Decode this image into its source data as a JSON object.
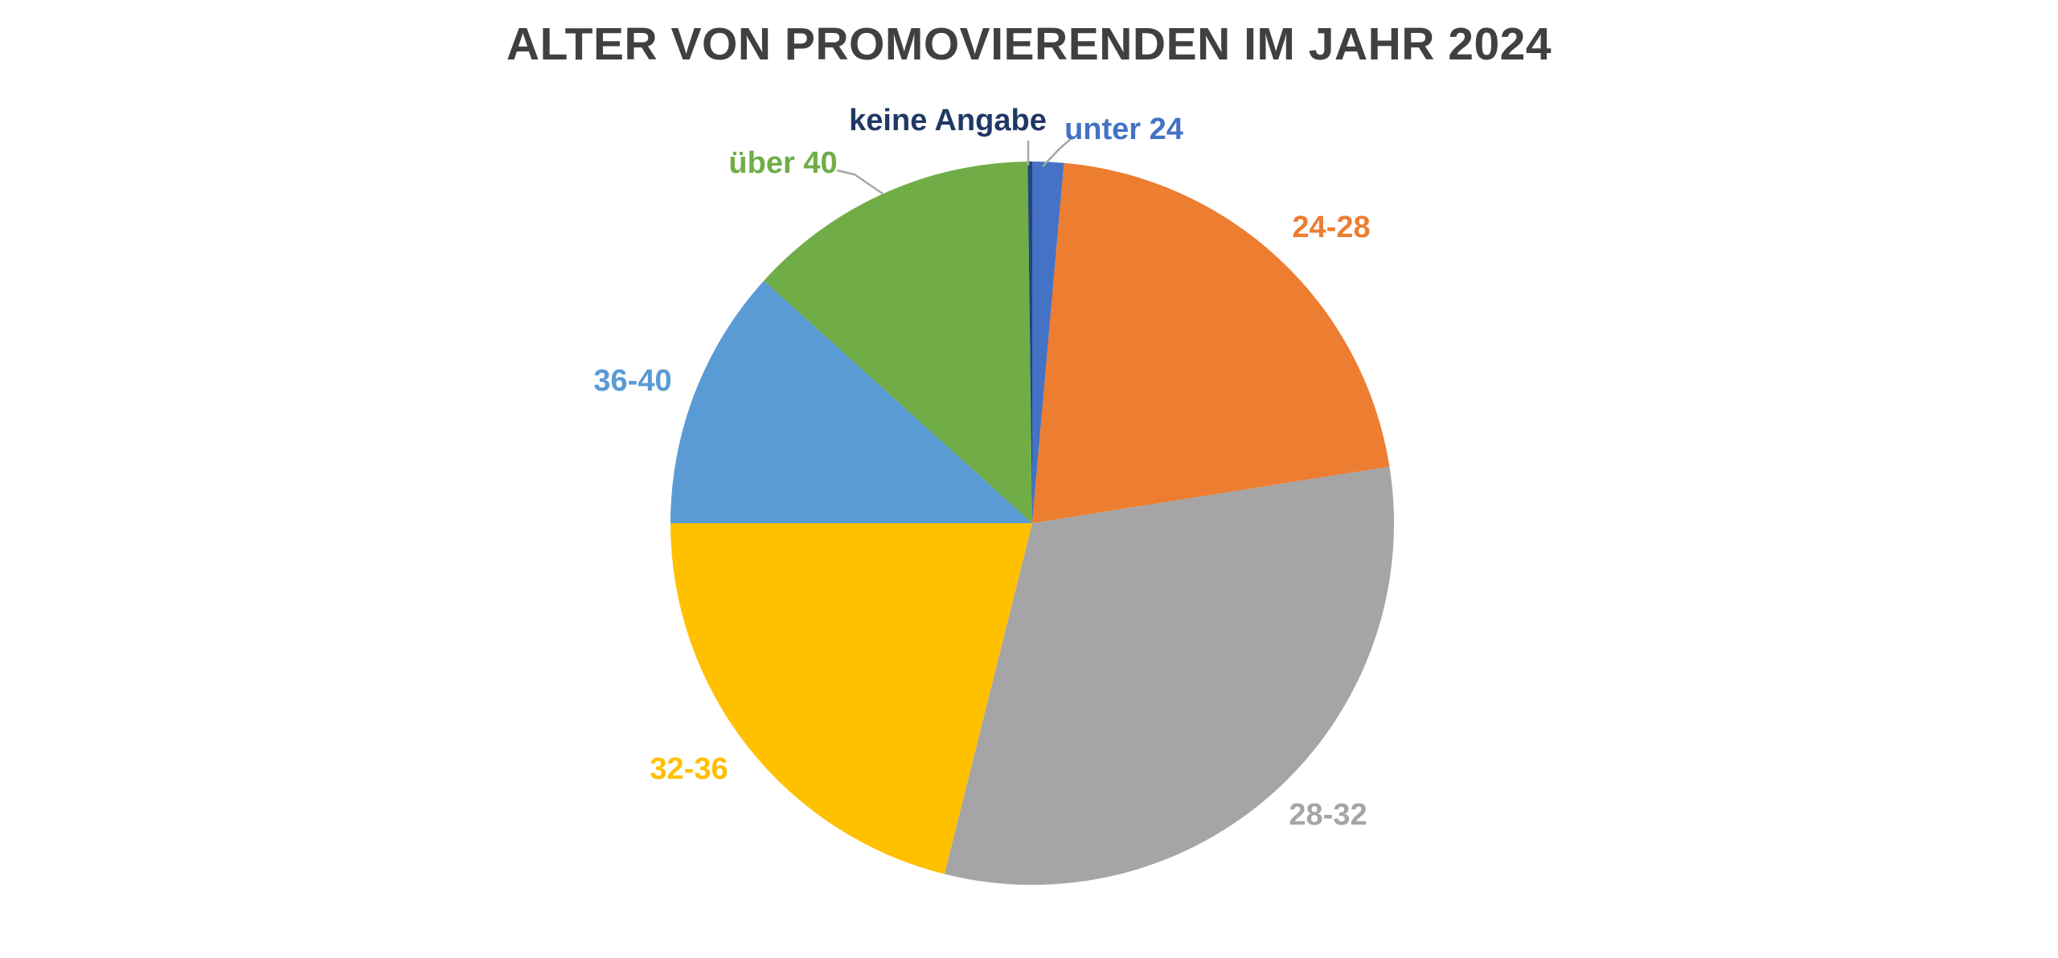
{
  "page": {
    "background_color": "#FFFFFF"
  },
  "chart_data": {
    "type": "pie",
    "title": "ALTER VON PROMOVIERENDEN IM JAHR 2024",
    "title_color": "#404040",
    "direction": "clockwise",
    "start_angle_deg": 0,
    "legend_position": "none",
    "labeling": "direct category labels with leader lines",
    "values_estimated": true,
    "leader_line_color": "#A6A6A6",
    "slices": [
      {
        "label": "unter 24",
        "value_pct": 1.4,
        "color": "#4472C4",
        "label_color": "#4472C4"
      },
      {
        "label": "24-28",
        "value_pct": 21.1,
        "color": "#ED7D31",
        "label_color": "#ED7D31"
      },
      {
        "label": "28-32",
        "value_pct": 31.4,
        "color": "#A5A5A5",
        "label_color": "#A5A5A5"
      },
      {
        "label": "32-36",
        "value_pct": 21.1,
        "color": "#FFC000",
        "label_color": "#FFC000"
      },
      {
        "label": "36-40",
        "value_pct": 11.7,
        "color": "#5B9BD5",
        "label_color": "#5B9BD5"
      },
      {
        "label": "über 40",
        "value_pct": 13.1,
        "color": "#70AD47",
        "label_color": "#70AD47"
      },
      {
        "label": "keine Angabe",
        "value_pct": 0.2,
        "color": "#264478",
        "label_color": "#1F3864"
      }
    ]
  }
}
